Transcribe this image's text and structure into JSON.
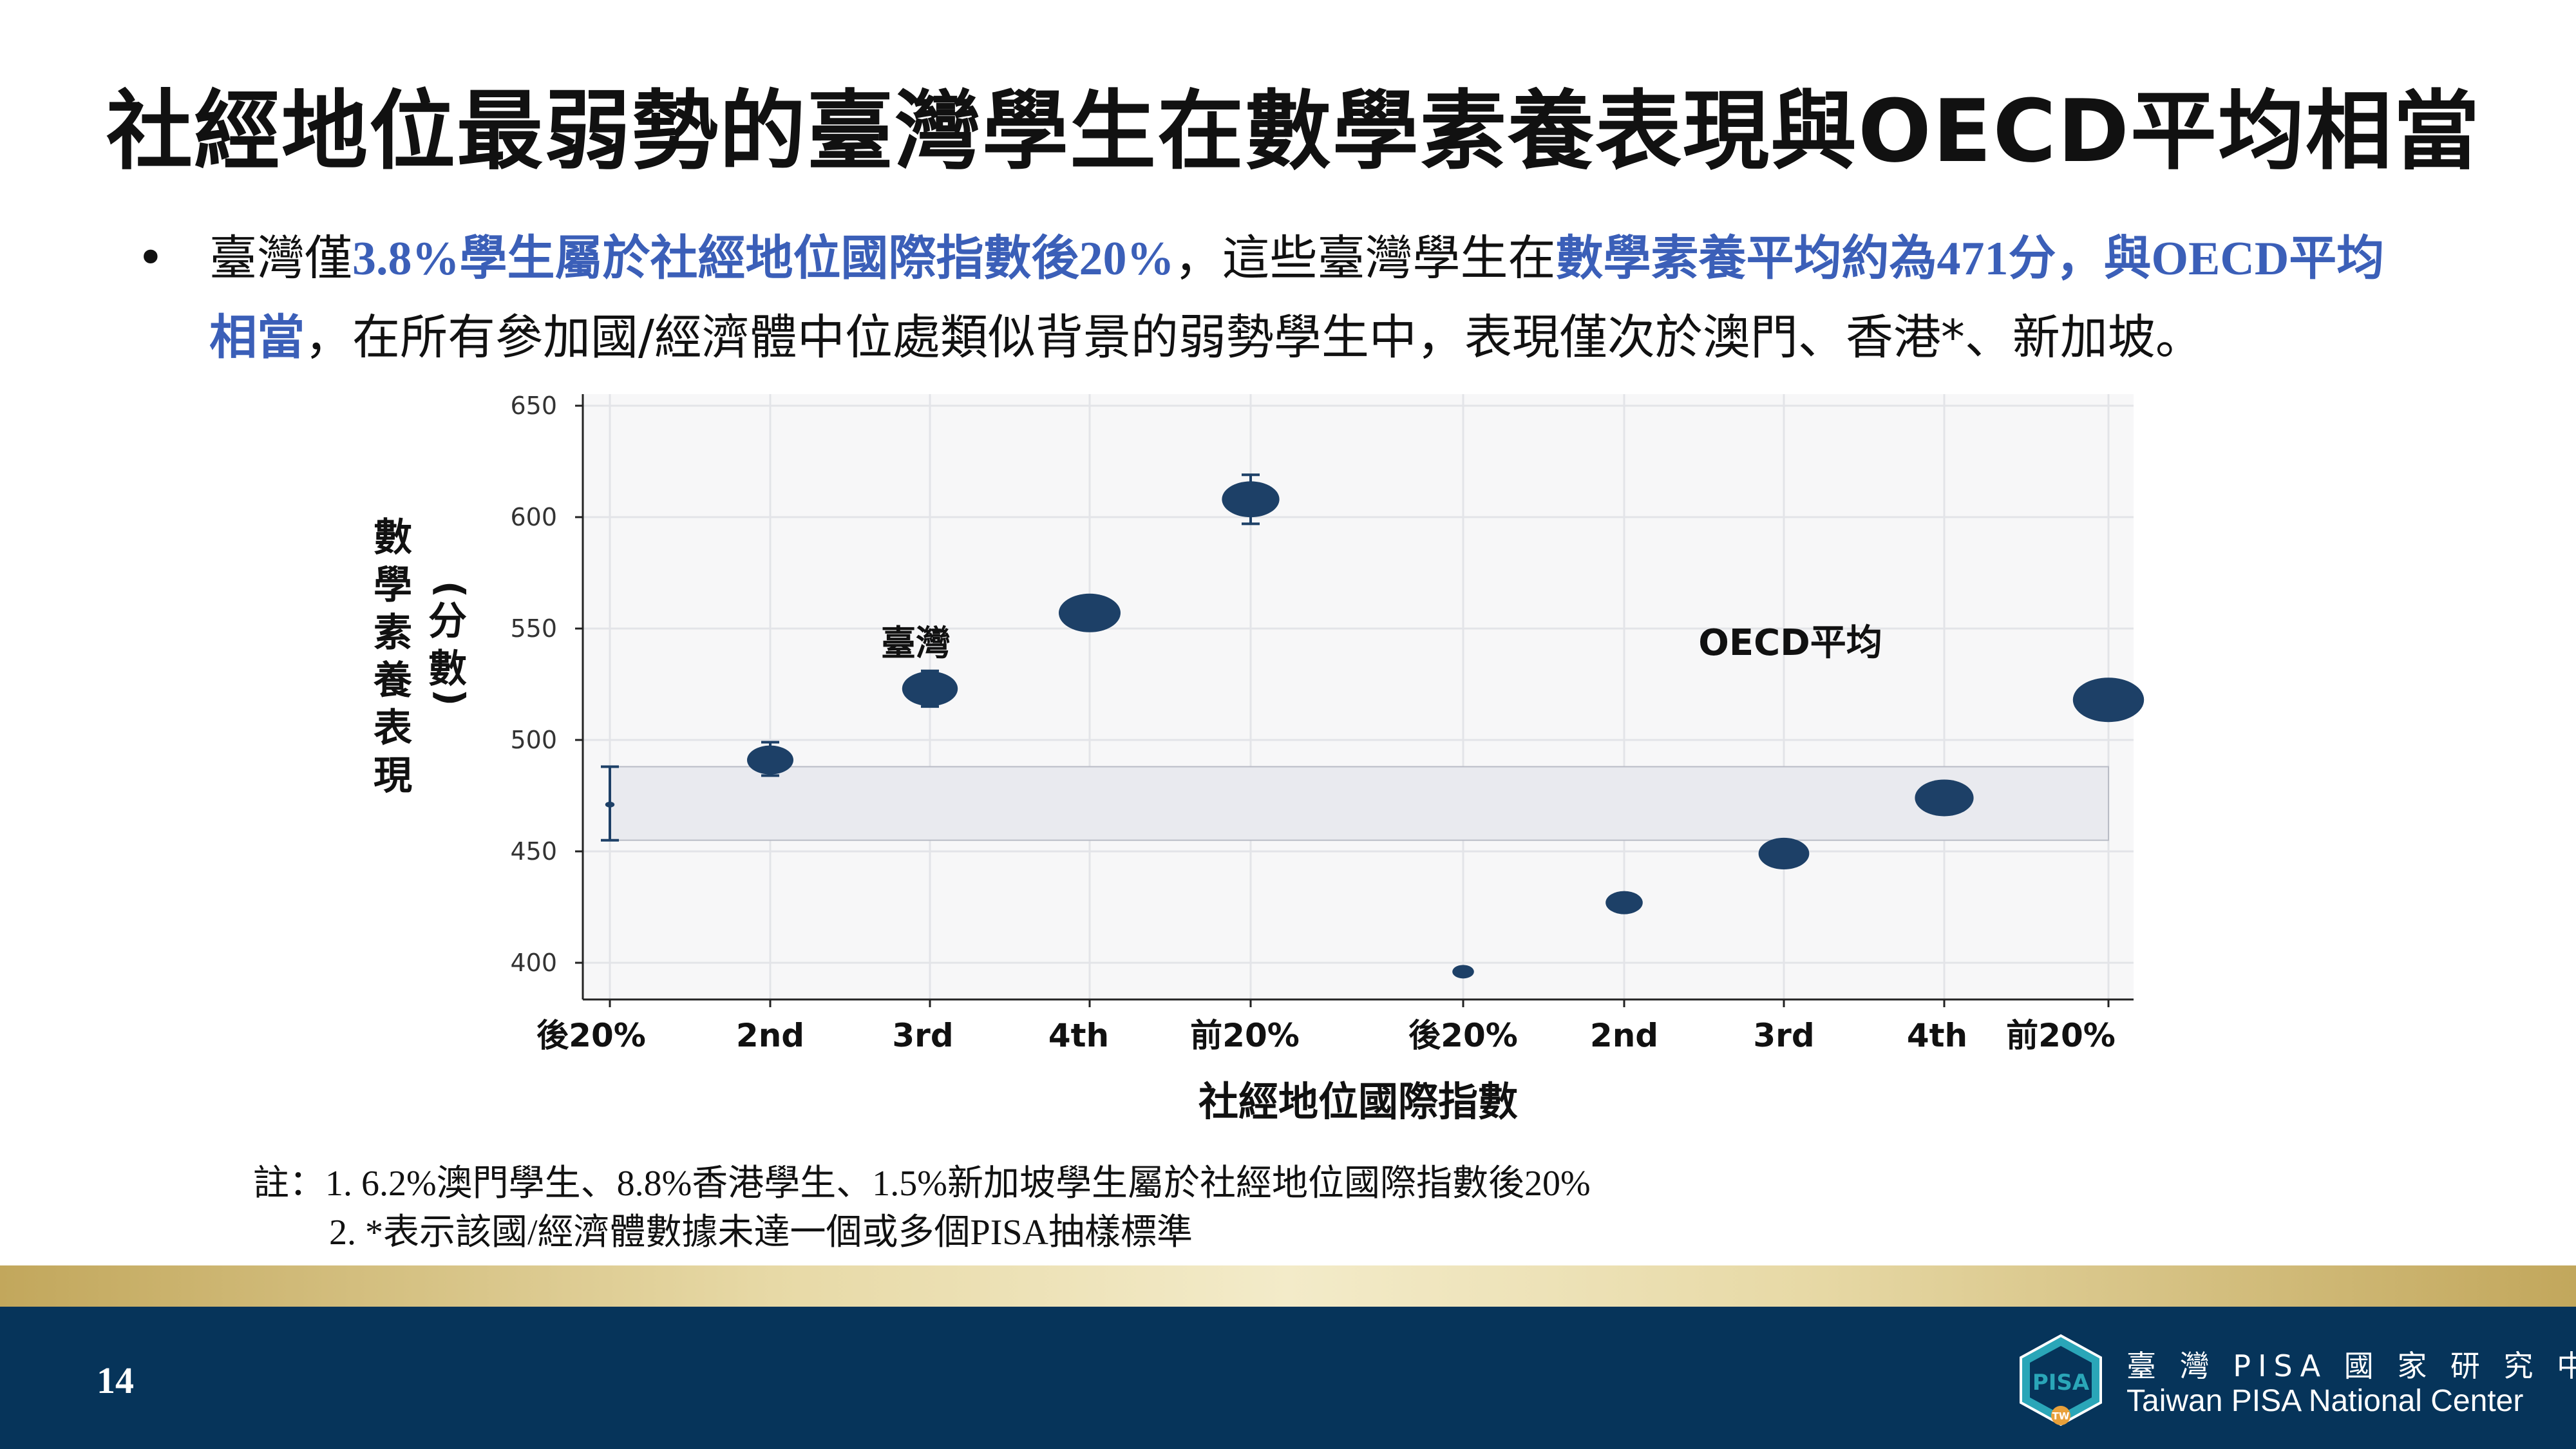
{
  "title": "社經地位最弱勢的臺灣學生在數學素養表現與OECD平均相當",
  "bullet": {
    "p1": "臺灣僅",
    "h1": "3.8%學生屬於社經地位國際指數後20%",
    "p2": "，這些臺灣學生在",
    "h2": "數學素養平均約為471分，與OECD平均相當",
    "p3": "，在所有參加國/經濟體中位處類似背景的弱勢學生中，表現僅次於澳門、香港*、新加坡。"
  },
  "chart_data": {
    "type": "scatter",
    "ylabel_main": "數學素養表現",
    "ylabel_unit": "(分數)",
    "xlabel": "社經地位國際指數",
    "ylim": [
      400,
      650
    ],
    "yticks": [
      400,
      450,
      500,
      550,
      600,
      650
    ],
    "grid": true,
    "groups": [
      {
        "label": "臺灣",
        "categories": [
          "後20%",
          "2nd",
          "3rd",
          "4th",
          "前20%"
        ],
        "values": [
          471,
          491,
          523,
          557,
          608
        ],
        "error": [
          [
            455,
            488
          ],
          [
            484,
            499
          ],
          [
            515,
            531
          ],
          [
            550,
            564
          ],
          [
            597,
            619
          ]
        ],
        "bubble_size": [
          0.15,
          0.75,
          0.9,
          1.0,
          0.93
        ]
      },
      {
        "label": "OECD平均",
        "categories": [
          "後20%",
          "2nd",
          "3rd",
          "4th",
          "前20%"
        ],
        "values": [
          396,
          427,
          449,
          474,
          518
        ],
        "bubble_size": [
          0.35,
          0.6,
          0.82,
          0.95,
          1.15
        ]
      }
    ],
    "band": [
      455,
      488
    ],
    "color": "#1d4067",
    "band_color": "#e9eaef"
  },
  "notes": {
    "line1": "註：1. 6.2%澳門學生、8.8%香港學生、1.5%新加坡學生屬於社經地位國際指數後20%",
    "line2": "2. *表示該國/經濟體數據未達一個或多個PISA抽樣標準"
  },
  "footer": {
    "page_number": "14",
    "org_zh": "臺 灣 PISA 國 家 研 究 中 心",
    "org_en": "Taiwan PISA National Center",
    "logo_text": "PISA",
    "logo_badge": "TW"
  },
  "colors": {
    "highlight": "#3b5fb8",
    "footer_bg": "#06345a",
    "logo_teal": "#2aa6b8",
    "logo_orange": "#e8a03a"
  }
}
